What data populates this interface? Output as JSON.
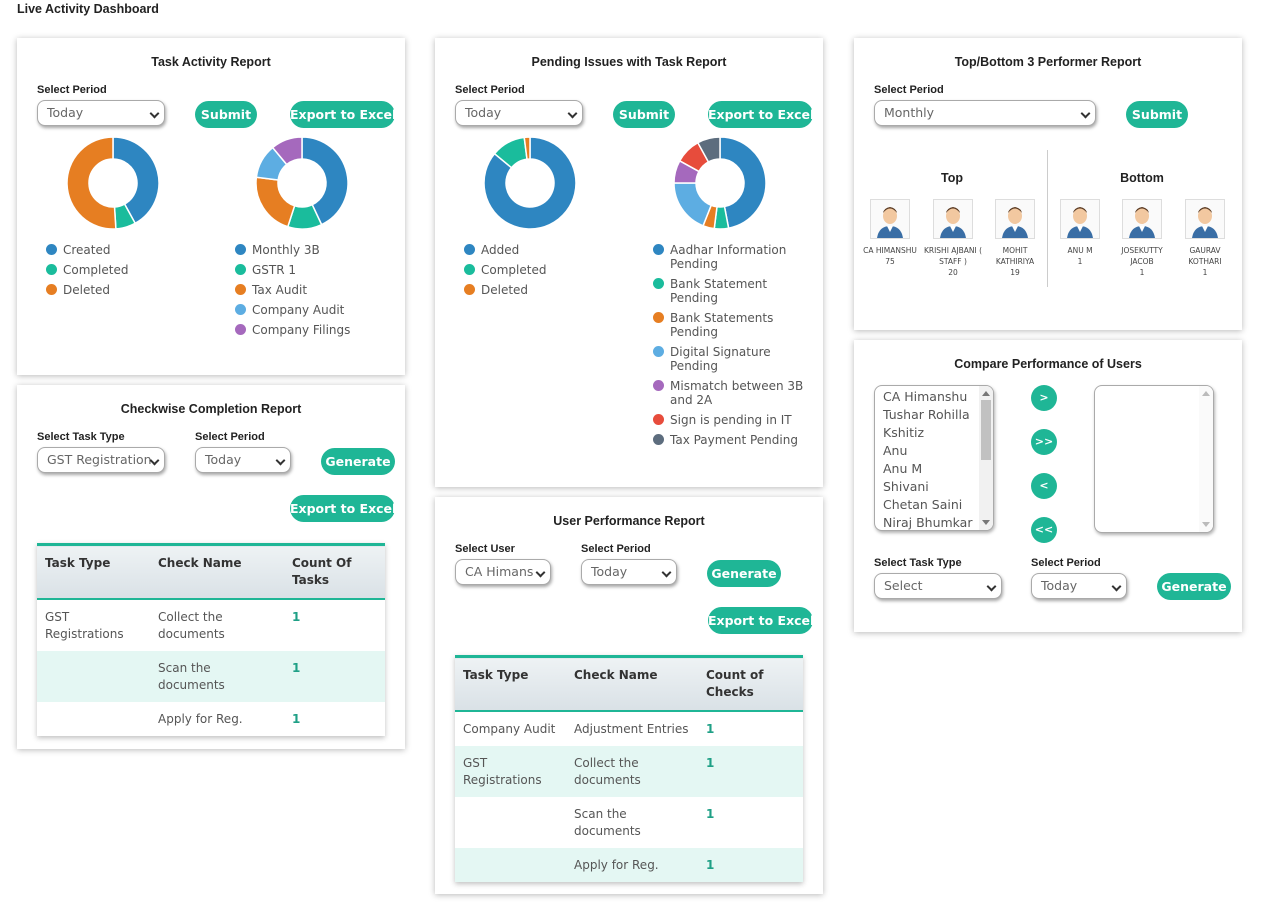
{
  "page_title": "Live Activity Dashboard",
  "colors": {
    "accent": "#1fb696",
    "blue": "#2e86c1",
    "teal": "#1abc9c",
    "orange": "#e67e22",
    "light_blue": "#5dade2",
    "purple": "#a569bd",
    "red": "#e74c3c",
    "slate": "#5d6d7e"
  },
  "task_activity": {
    "title": "Task Activity Report",
    "period_label": "Select Period",
    "period_value": "Today",
    "submit_label": "Submit",
    "export_label": "Export to Excel",
    "chart_left": [
      {
        "label": "Created",
        "value": 42,
        "color": "#2e86c1"
      },
      {
        "label": "Completed",
        "value": 7,
        "color": "#1abc9c"
      },
      {
        "label": "Deleted",
        "value": 51,
        "color": "#e67e22"
      }
    ],
    "chart_right": [
      {
        "label": "Monthly 3B",
        "value": 43,
        "color": "#2e86c1"
      },
      {
        "label": "GSTR 1",
        "value": 12,
        "color": "#1abc9c"
      },
      {
        "label": "Tax Audit",
        "value": 22,
        "color": "#e67e22"
      },
      {
        "label": "Company Audit",
        "value": 12,
        "color": "#5dade2"
      },
      {
        "label": "Company Filings",
        "value": 11,
        "color": "#a569bd"
      }
    ]
  },
  "pending_issues": {
    "title": "Pending Issues with Task Report",
    "period_label": "Select Period",
    "period_value": "Today",
    "submit_label": "Submit",
    "export_label": "Export to Excel",
    "chart_left": [
      {
        "label": "Added",
        "value": 86,
        "color": "#2e86c1"
      },
      {
        "label": "Completed",
        "value": 12,
        "color": "#1abc9c"
      },
      {
        "label": "Deleted",
        "value": 2,
        "color": "#e67e22"
      }
    ],
    "chart_right": [
      {
        "label": "Aadhar Information Pending",
        "value": 47,
        "color": "#2e86c1"
      },
      {
        "label": "Bank Statement Pending",
        "value": 5,
        "color": "#1abc9c"
      },
      {
        "label": "Bank Statements Pending",
        "value": 4,
        "color": "#e67e22"
      },
      {
        "label": "Digital Signature Pending",
        "value": 19,
        "color": "#5dade2"
      },
      {
        "label": "Mismatch between 3B and 2A",
        "value": 8,
        "color": "#a569bd"
      },
      {
        "label": "Sign is pending in IT",
        "value": 9,
        "color": "#e74c3c"
      },
      {
        "label": "Tax Payment Pending",
        "value": 8,
        "color": "#5d6d7e"
      }
    ]
  },
  "top_bottom": {
    "title": "Top/Bottom 3 Performer Report",
    "period_label": "Select Period",
    "period_value": "Monthly",
    "submit_label": "Submit",
    "top_label": "Top",
    "bottom_label": "Bottom",
    "top": [
      {
        "name": "CA HIMANSHU",
        "count": "75"
      },
      {
        "name": "KRISHI AJBANI ( STAFF )",
        "count": "20"
      },
      {
        "name": "MOHIT KATHIRIYA",
        "count": "19"
      }
    ],
    "bottom": [
      {
        "name": "ANU M",
        "count": "1"
      },
      {
        "name": "JOSEKUTTY JACOB",
        "count": "1"
      },
      {
        "name": "GAURAV KOTHARI",
        "count": "1"
      }
    ]
  },
  "checkwise": {
    "title": "Checkwise Completion Report",
    "task_type_label": "Select Task Type",
    "task_type_value": "GST Registration",
    "period_label": "Select Period",
    "period_value": "Today",
    "generate_label": "Generate",
    "export_label": "Export to Excel",
    "columns": [
      "Task Type",
      "Check Name",
      "Count Of Tasks"
    ],
    "rows": [
      {
        "task": "GST Registrations",
        "check": "Collect the documents",
        "count": "1"
      },
      {
        "task": "",
        "check": "Scan the documents",
        "count": "1"
      },
      {
        "task": "",
        "check": "Apply for Reg.",
        "count": "1"
      }
    ]
  },
  "user_performance": {
    "title": "User Performance Report",
    "user_label": "Select User",
    "user_value": "CA Himans",
    "period_label": "Select Period",
    "period_value": "Today",
    "generate_label": "Generate",
    "export_label": "Export to Excel",
    "columns": [
      "Task Type",
      "Check Name",
      "Count of Checks"
    ],
    "rows": [
      {
        "task": "Company Audit",
        "check": "Adjustment Entries",
        "count": "1"
      },
      {
        "task": "GST Registrations",
        "check": "Collect the documents",
        "count": "1"
      },
      {
        "task": "",
        "check": "Scan the documents",
        "count": "1"
      },
      {
        "task": "",
        "check": "Apply for Reg.",
        "count": "1"
      }
    ]
  },
  "compare": {
    "title": "Compare Performance of Users",
    "users": [
      "CA Himanshu",
      "Tushar Rohilla",
      "Kshitiz",
      "Anu",
      "Anu M",
      "Shivani",
      "Chetan Saini",
      "Niraj Bhumkar"
    ],
    "move_one_right": ">",
    "move_all_right": ">>",
    "move_one_left": "<",
    "move_all_left": "<<",
    "task_type_label": "Select Task Type",
    "task_type_value": "Select",
    "period_label": "Select Period",
    "period_value": "Today",
    "generate_label": "Generate"
  }
}
